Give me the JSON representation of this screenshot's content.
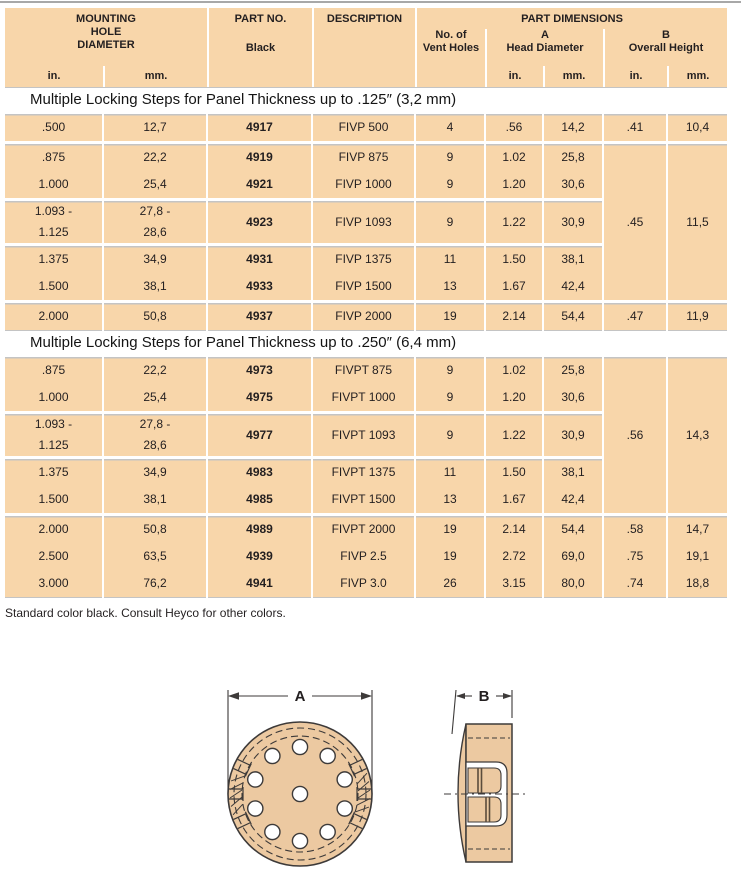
{
  "colors": {
    "cell": "#f8d6aa",
    "grid": "#ffffff",
    "text": "#231f20",
    "rule": "#a8a8a8",
    "sepline": "#c4c4c4",
    "diagram_fill": "#ecc9a1",
    "line": "#3d3a39"
  },
  "header": {
    "mounting": [
      "MOUNTING",
      "HOLE",
      "DIAMETER"
    ],
    "part_no": "PART NO.",
    "part_no_color": "Black",
    "description": "DESCRIPTION",
    "part_dimensions": "PART DIMENSIONS",
    "vent_holes": [
      "No. of",
      "Vent Holes"
    ],
    "a_group": [
      "A",
      "Head Diameter"
    ],
    "b_group": [
      "B",
      "Overall Height"
    ],
    "unit_in": "in.",
    "unit_mm": "mm."
  },
  "sections": [
    {
      "title": "Multiple Locking Steps for Panel Thickness up to .125″ (3,2 mm)",
      "merged_b": {
        "in": ".45",
        "mm": "11,5",
        "start_group": 1,
        "span_groups": 3
      },
      "groups": [
        {
          "b": {
            "in": ".41",
            "mm": "10,4"
          },
          "rows": [
            {
              "in": ".500",
              "mm": "12,7",
              "part": "4917",
              "desc": "FIVP 500",
              "vents": "4",
              "a_in": ".56",
              "a_mm": "14,2"
            }
          ]
        },
        {
          "b": "merged",
          "rows": [
            {
              "in": ".875",
              "mm": "22,2",
              "part": "4919",
              "desc": "FIVP 875",
              "vents": "9",
              "a_in": "1.02",
              "a_mm": "25,8"
            },
            {
              "in": "1.000",
              "mm": "25,4",
              "part": "4921",
              "desc": "FIVP 1000",
              "vents": "9",
              "a_in": "1.20",
              "a_mm": "30,6"
            }
          ]
        },
        {
          "b": "merged",
          "rows": [
            {
              "in": [
                "1.093 -",
                "1.125"
              ],
              "mm": [
                "27,8 -",
                "28,6"
              ],
              "part": "4923",
              "desc": "FIVP 1093",
              "vents": "9",
              "a_in": "1.22",
              "a_mm": "30,9"
            }
          ]
        },
        {
          "b": "merged",
          "rows": [
            {
              "in": "1.375",
              "mm": "34,9",
              "part": "4931",
              "desc": "FIVP 1375",
              "vents": "11",
              "a_in": "1.50",
              "a_mm": "38,1"
            },
            {
              "in": "1.500",
              "mm": "38,1",
              "part": "4933",
              "desc": "FIVP 1500",
              "vents": "13",
              "a_in": "1.67",
              "a_mm": "42,4"
            }
          ]
        },
        {
          "b": {
            "in": ".47",
            "mm": "11,9"
          },
          "rows": [
            {
              "in": "2.000",
              "mm": "50,8",
              "part": "4937",
              "desc": "FIVP 2000",
              "vents": "19",
              "a_in": "2.14",
              "a_mm": "54,4"
            }
          ]
        }
      ]
    },
    {
      "title": "Multiple Locking Steps for Panel Thickness up to .250″ (6,4 mm)",
      "merged_b": {
        "in": ".56",
        "mm": "14,3",
        "start_group": 0,
        "span_groups": 3
      },
      "groups": [
        {
          "b": "merged",
          "rows": [
            {
              "in": ".875",
              "mm": "22,2",
              "part": "4973",
              "desc": "FIVPT 875",
              "vents": "9",
              "a_in": "1.02",
              "a_mm": "25,8"
            },
            {
              "in": "1.000",
              "mm": "25,4",
              "part": "4975",
              "desc": "FIVPT 1000",
              "vents": "9",
              "a_in": "1.20",
              "a_mm": "30,6"
            }
          ]
        },
        {
          "b": "merged",
          "rows": [
            {
              "in": [
                "1.093 -",
                "1.125"
              ],
              "mm": [
                "27,8 -",
                "28,6"
              ],
              "part": "4977",
              "desc": "FIVPT 1093",
              "vents": "9",
              "a_in": "1.22",
              "a_mm": "30,9"
            }
          ]
        },
        {
          "b": "merged",
          "rows": [
            {
              "in": "1.375",
              "mm": "34,9",
              "part": "4983",
              "desc": "FIVPT 1375",
              "vents": "11",
              "a_in": "1.50",
              "a_mm": "38,1"
            },
            {
              "in": "1.500",
              "mm": "38,1",
              "part": "4985",
              "desc": "FIVPT 1500",
              "vents": "13",
              "a_in": "1.67",
              "a_mm": "42,4"
            }
          ]
        },
        {
          "b": "per_row",
          "rows": [
            {
              "in": "2.000",
              "mm": "50,8",
              "part": "4989",
              "desc": "FIVPT 2000",
              "vents": "19",
              "a_in": "2.14",
              "a_mm": "54,4",
              "b_in": ".58",
              "b_mm": "14,7"
            },
            {
              "in": "2.500",
              "mm": "63,5",
              "part": "4939",
              "desc": "FIVP 2.5",
              "vents": "19",
              "a_in": "2.72",
              "a_mm": "69,0",
              "b_in": ".75",
              "b_mm": "19,1"
            },
            {
              "in": "3.000",
              "mm": "76,2",
              "part": "4941",
              "desc": "FIVP 3.0",
              "vents": "26",
              "a_in": "3.15",
              "a_mm": "80,0",
              "b_in": ".74",
              "b_mm": "18,8"
            }
          ]
        }
      ]
    }
  ],
  "footnote": "Standard color black. Consult Heyco for other colors.",
  "diagram": {
    "dim_a_label": "A",
    "dim_b_label": "B",
    "front_vent_holes": 11
  }
}
